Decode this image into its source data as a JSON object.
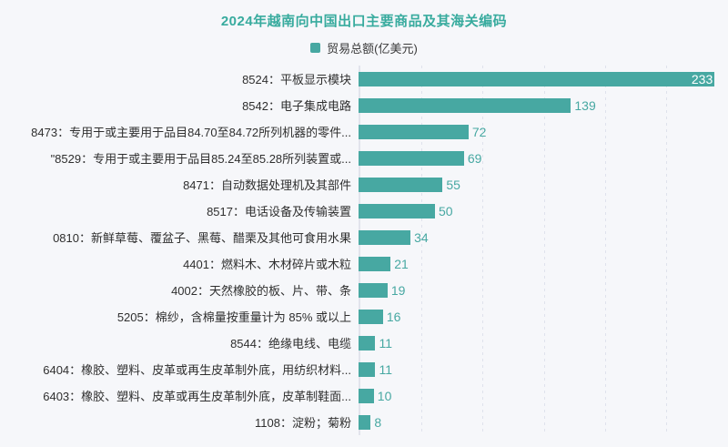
{
  "title": {
    "text": "2024年越南向中国出口主要商品及其海关编码"
  },
  "legend": {
    "label": "贸易总额(亿美元)"
  },
  "colors": {
    "background": "#f6f7fa",
    "title": "#38ab9e",
    "bar": "#47a8a2",
    "value_label": "#47a8a2",
    "value_label_inside_first_bar": "#ffffff",
    "category_label": "#2f2f2f",
    "axis_line": "#e2e4ec",
    "grid_line": "#dfe2ec"
  },
  "chart_data": {
    "type": "bar",
    "orientation": "horizontal",
    "title": "2024年越南向中国出口主要商品及其海关编码",
    "legend_position": "top-center",
    "grid": "dashed vertical gridlines, solid left axis line",
    "xlabel": "",
    "ylabel": "",
    "xlim": [
      0,
      240
    ],
    "gridlines_x": [
      40,
      80,
      120,
      160,
      200
    ],
    "categories": [
      "8524：平板显示模块",
      "8542：电子集成电路",
      "8473：专用于或主要用于品目84.70至84.72所列机器的零件...",
      "\"8529：专用于或主要用于品目85.24至85.28所列装置或...",
      "8471：自动数据处理机及其部件",
      "8517：电话设备及传输装置",
      "0810：新鲜草莓、覆盆子、黑莓、醋栗及其他可食用水果",
      "4401：燃料木、木材碎片或木粒",
      "4002：天然橡胶的板、片、带、条",
      "5205：棉纱，含棉量按重量计为 85% 或以上",
      "8544：绝缘电线、电缆",
      "6404：橡胶、塑料、皮革或再生皮革制外底，用纺织材料...",
      "6403：橡胶、塑料、皮革或再生皮革制外底，皮革制鞋面...",
      "1108：淀粉；菊粉"
    ],
    "series": [
      {
        "name": "贸易总额(亿美元)",
        "values": [
          233,
          139,
          72,
          69,
          55,
          50,
          34,
          21,
          19,
          16,
          11,
          11,
          10,
          8
        ]
      }
    ],
    "value_label_style": "outside end of bar, teal; first bar label inside end, white"
  }
}
